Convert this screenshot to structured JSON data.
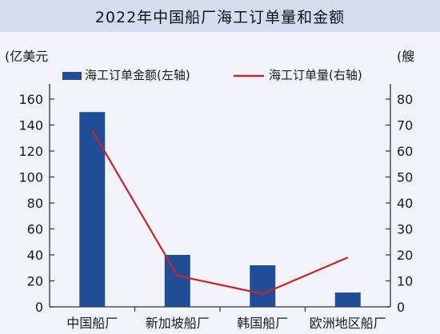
{
  "chart_data": {
    "type": "bar",
    "title": "2022年中国船厂海工订单量和金额",
    "categories": [
      "中国船厂",
      "新加坡船厂",
      "韩国船厂",
      "欧洲地区船厂"
    ],
    "series": [
      {
        "name": "海工订单金额(左轴)",
        "type": "bar",
        "axis": "left",
        "values": [
          150,
          40,
          32,
          11
        ]
      },
      {
        "name": "海工订单量(右轴)",
        "type": "line",
        "axis": "right",
        "values": [
          68,
          12,
          5,
          19
        ]
      }
    ],
    "left_axis": {
      "unit": "(亿美元",
      "ylim": [
        0,
        160
      ],
      "ticks": [
        0,
        20,
        40,
        60,
        80,
        100,
        120,
        140,
        160
      ]
    },
    "right_axis": {
      "unit": "(艘",
      "ylim": [
        0,
        80
      ],
      "ticks": [
        0,
        10,
        20,
        30,
        40,
        50,
        60,
        70,
        80
      ]
    },
    "legend_position": "top",
    "grid": false,
    "colors": {
      "bar": "#1f4e96",
      "line": "#c8222d",
      "title_bg": "#d5dced",
      "background": "#f2f3f8"
    }
  }
}
